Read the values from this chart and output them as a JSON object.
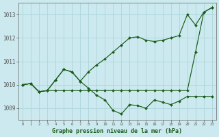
{
  "title": "Graphe pression niveau de la mer (hPa)",
  "background_color": "#cbe9ee",
  "grid_color": "#b0d8de",
  "line_color": "#1a5c1a",
  "x_labels": [
    "0",
    "1",
    "2",
    "3",
    "4",
    "5",
    "6",
    "7",
    "8",
    "9",
    "10",
    "11",
    "12",
    "13",
    "14",
    "15",
    "16",
    "17",
    "18",
    "19",
    "20",
    "21",
    "22",
    "23"
  ],
  "ylim": [
    1008.5,
    1013.5
  ],
  "yticks": [
    1009,
    1010,
    1011,
    1012,
    1013
  ],
  "series": [
    [
      1010.0,
      1010.05,
      1009.7,
      1009.75,
      1010.2,
      1010.65,
      1010.55,
      1010.15,
      1009.85,
      1009.55,
      1009.35,
      1008.9,
      1008.75,
      1009.15,
      1009.1,
      1009.0,
      1009.35,
      1009.25,
      1009.15,
      1009.3,
      1009.5,
      1009.5,
      1009.5,
      1009.5
    ],
    [
      1010.0,
      1010.05,
      1009.7,
      1009.75,
      1010.2,
      1010.65,
      1010.55,
      1010.15,
      1010.55,
      1010.85,
      1011.1,
      1011.4,
      1011.7,
      1012.0,
      1012.05,
      1011.9,
      1011.85,
      1011.9,
      1012.0,
      1012.1,
      1013.0,
      1012.55,
      1013.1,
      1013.3
    ],
    [
      1010.0,
      1010.05,
      1009.7,
      1009.75,
      1009.75,
      1009.75,
      1009.75,
      1009.75,
      1009.75,
      1009.75,
      1009.75,
      1009.75,
      1009.75,
      1009.75,
      1009.75,
      1009.75,
      1009.75,
      1009.75,
      1009.75,
      1009.75,
      1009.75,
      1011.4,
      1013.1,
      1013.3
    ]
  ]
}
